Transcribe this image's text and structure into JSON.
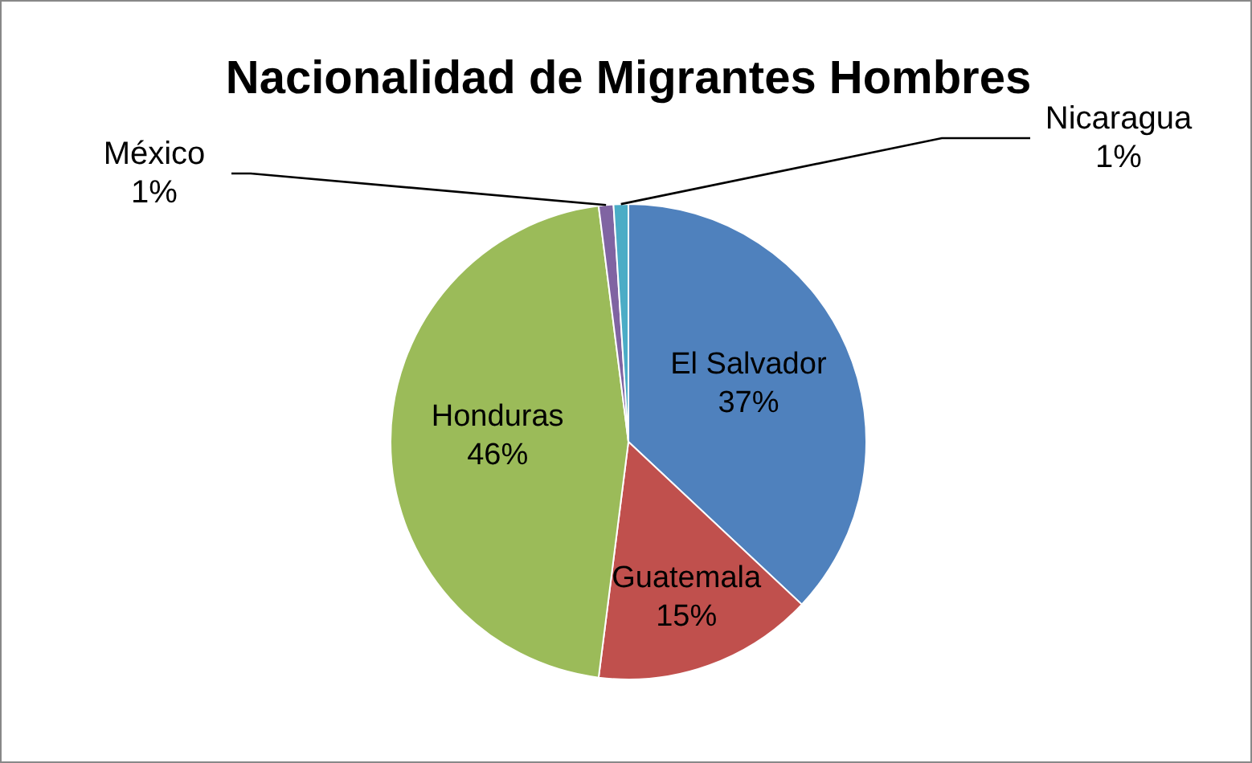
{
  "chart_data": {
    "type": "pie",
    "title": "Nacionalidad de Migrantes Hombres",
    "categories": [
      "El Salvador",
      "Guatemala",
      "Honduras",
      "México",
      "Nicaragua"
    ],
    "values": [
      37,
      15,
      46,
      1,
      1
    ],
    "colors": [
      "#4f81bd",
      "#c0504d",
      "#9bbb59",
      "#8064a2",
      "#4bacc6"
    ],
    "value_labels": [
      "37%",
      "15%",
      "46%",
      "1%",
      "1%"
    ]
  }
}
